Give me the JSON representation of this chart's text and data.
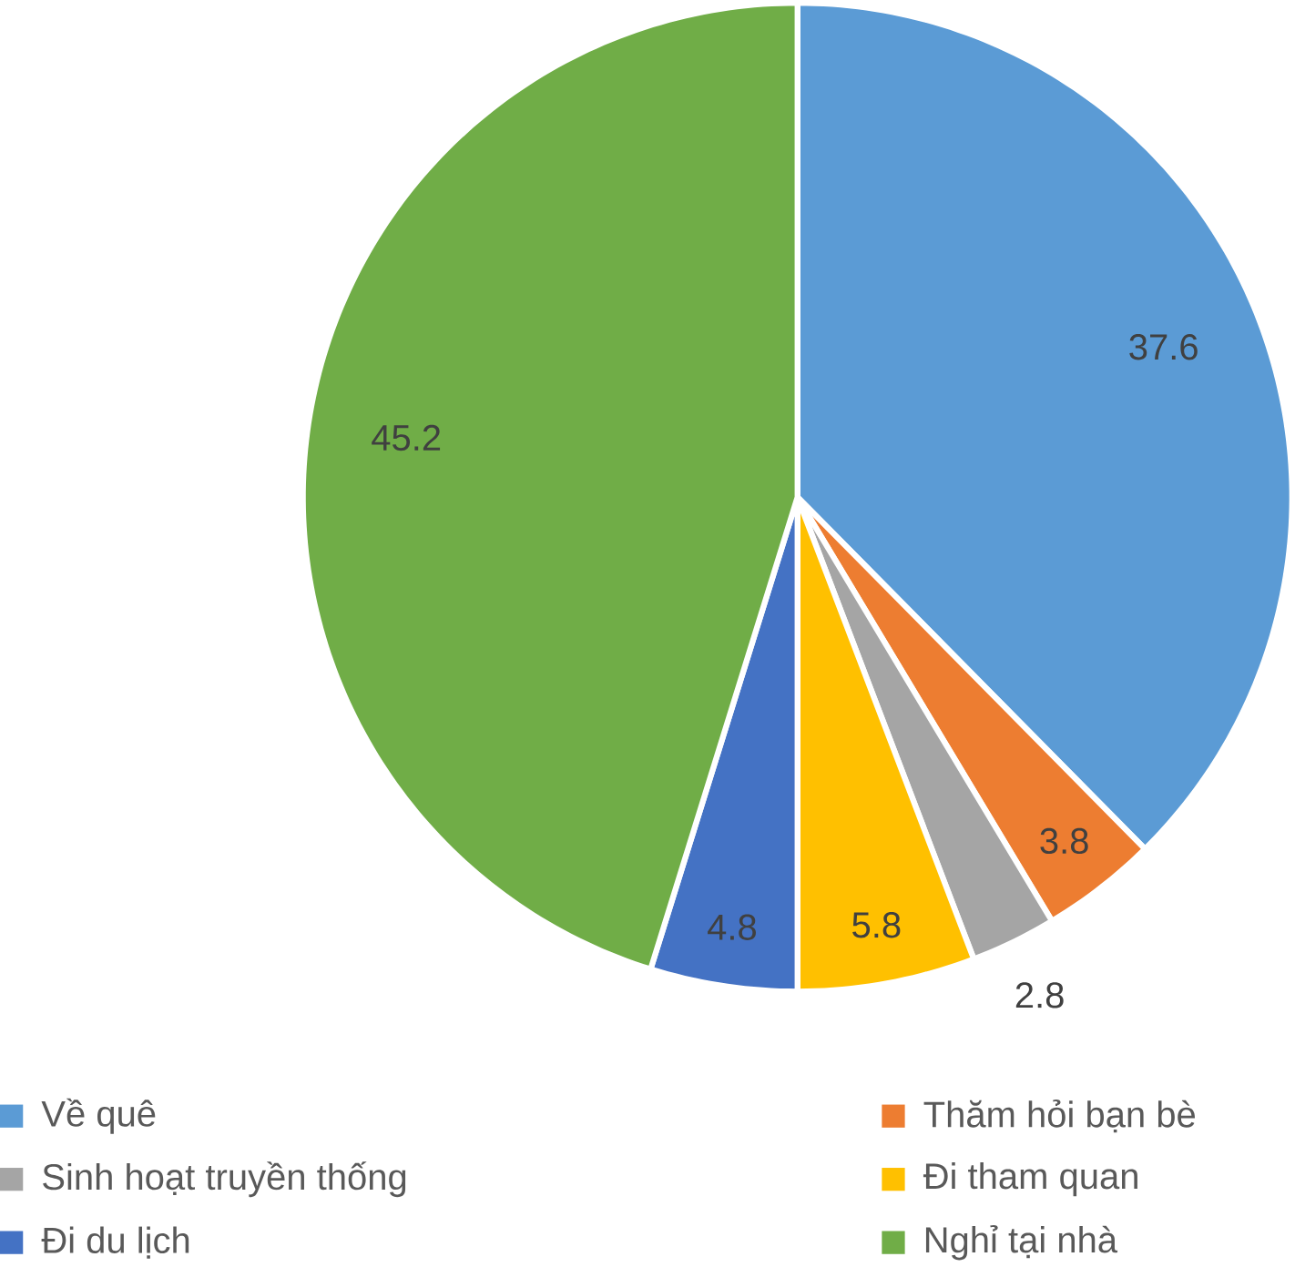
{
  "chart_data": {
    "type": "pie",
    "categories": [
      "Về quê",
      "Thăm hỏi bạn bè",
      "Sinh hoạt truyền thống",
      "Đi tham quan",
      "Đi du lịch",
      "Nghỉ tại nhà"
    ],
    "values": [
      37.6,
      3.8,
      2.8,
      5.8,
      4.8,
      45.2
    ],
    "colors": [
      "#5b9bd5",
      "#ed7d31",
      "#a5a5a5",
      "#ffc000",
      "#4472c4",
      "#70ad47"
    ],
    "data_labels": true,
    "legend": "bottom"
  }
}
